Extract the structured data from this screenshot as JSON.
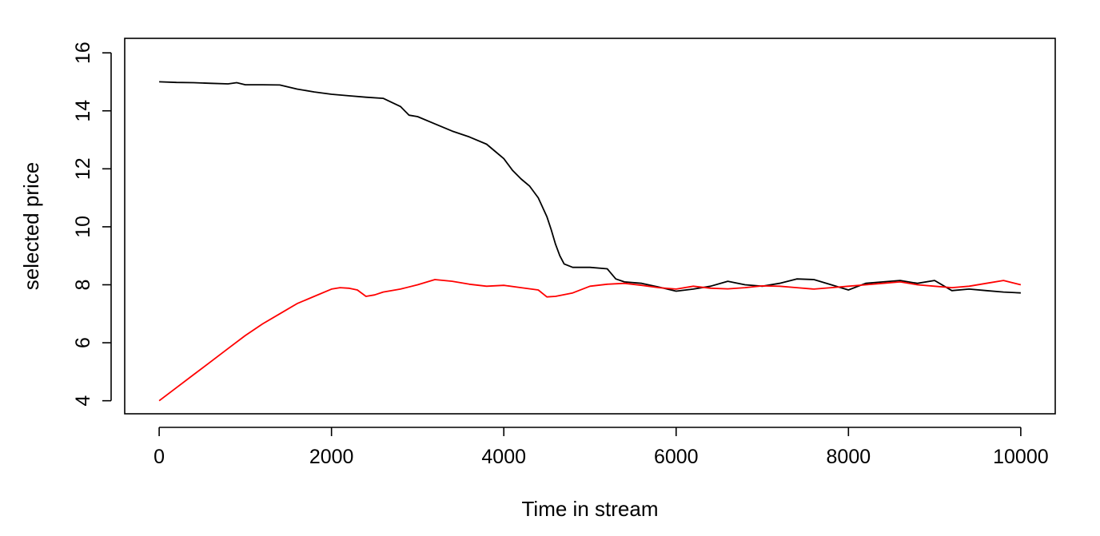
{
  "chart_data": {
    "type": "line",
    "title": "",
    "xlabel": "Time in stream",
    "ylabel": "selected price",
    "xlim": [
      -400,
      10400
    ],
    "ylim": [
      3.55,
      16.5
    ],
    "xticks": [
      0,
      2000,
      4000,
      6000,
      8000,
      10000
    ],
    "xtick_labels": [
      "0",
      "2000",
      "4000",
      "6000",
      "8000",
      "10000"
    ],
    "yticks": [
      4,
      6,
      8,
      10,
      12,
      14,
      16
    ],
    "ytick_labels": [
      "4",
      "6",
      "8",
      "10",
      "12",
      "14",
      "16"
    ],
    "grid": false,
    "legend": "none",
    "series": [
      {
        "color": "#000000",
        "x": [
          0,
          200,
          400,
          600,
          800,
          900,
          1000,
          1200,
          1400,
          1600,
          1800,
          2000,
          2200,
          2400,
          2600,
          2800,
          2900,
          3000,
          3200,
          3400,
          3600,
          3800,
          3900,
          4000,
          4100,
          4200,
          4300,
          4400,
          4500,
          4550,
          4600,
          4650,
          4700,
          4800,
          5000,
          5200,
          5300,
          5400,
          5600,
          5800,
          6000,
          6200,
          6400,
          6600,
          6800,
          7000,
          7200,
          7400,
          7600,
          7800,
          8000,
          8200,
          8400,
          8600,
          8800,
          9000,
          9200,
          9400,
          9600,
          9800,
          10000
        ],
        "y": [
          15.0,
          14.98,
          14.97,
          14.95,
          14.93,
          14.97,
          14.9,
          14.9,
          14.89,
          14.75,
          14.65,
          14.57,
          14.52,
          14.47,
          14.43,
          14.15,
          13.85,
          13.8,
          13.55,
          13.3,
          13.1,
          12.85,
          12.6,
          12.35,
          11.95,
          11.65,
          11.4,
          11.0,
          10.35,
          9.9,
          9.4,
          9.0,
          8.72,
          8.6,
          8.6,
          8.55,
          8.2,
          8.1,
          8.05,
          7.92,
          7.78,
          7.85,
          7.95,
          8.12,
          8.0,
          7.95,
          8.05,
          8.2,
          8.18,
          8.0,
          7.82,
          8.05,
          8.1,
          8.15,
          8.05,
          8.15,
          7.8,
          7.85,
          7.8,
          7.75,
          7.72
        ]
      },
      {
        "color": "#ff0000",
        "x": [
          0,
          200,
          400,
          600,
          800,
          1000,
          1200,
          1400,
          1600,
          1800,
          2000,
          2100,
          2200,
          2300,
          2400,
          2500,
          2600,
          2800,
          3000,
          3200,
          3400,
          3600,
          3800,
          4000,
          4200,
          4400,
          4500,
          4600,
          4800,
          5000,
          5200,
          5400,
          5600,
          5800,
          6000,
          6200,
          6400,
          6600,
          6800,
          7000,
          7200,
          7400,
          7600,
          7800,
          8000,
          8200,
          8400,
          8600,
          8800,
          9000,
          9200,
          9400,
          9600,
          9800,
          10000
        ],
        "y": [
          4.0,
          4.45,
          4.9,
          5.35,
          5.8,
          6.25,
          6.65,
          7.0,
          7.35,
          7.6,
          7.85,
          7.9,
          7.88,
          7.82,
          7.6,
          7.65,
          7.75,
          7.85,
          8.0,
          8.18,
          8.12,
          8.02,
          7.95,
          7.98,
          7.9,
          7.82,
          7.58,
          7.6,
          7.72,
          7.95,
          8.02,
          8.05,
          7.98,
          7.9,
          7.85,
          7.95,
          7.88,
          7.86,
          7.9,
          7.96,
          7.95,
          7.9,
          7.85,
          7.9,
          7.95,
          8.0,
          8.05,
          8.1,
          8.0,
          7.95,
          7.9,
          7.95,
          8.05,
          8.15,
          8.0
        ]
      }
    ]
  }
}
